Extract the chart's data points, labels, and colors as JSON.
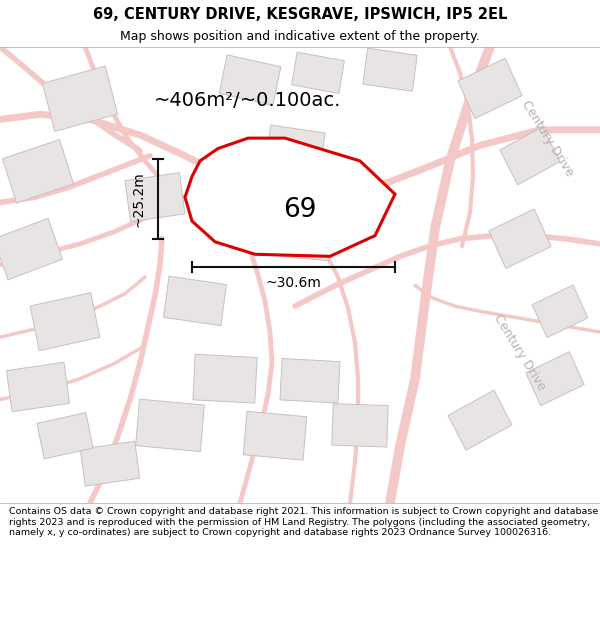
{
  "title_line1": "69, CENTURY DRIVE, KESGRAVE, IPSWICH, IP5 2EL",
  "title_line2": "Map shows position and indicative extent of the property.",
  "footer_text": "Contains OS data © Crown copyright and database right 2021. This information is subject to Crown copyright and database rights 2023 and is reproduced with the permission of HM Land Registry. The polygons (including the associated geometry, namely x, y co-ordinates) are subject to Crown copyright and database rights 2023 Ordnance Survey 100026316.",
  "area_label": "~406m²/~0.100ac.",
  "property_number": "69",
  "width_label": "~30.6m",
  "height_label": "~25.2m",
  "map_bg_color": "#fafafa",
  "building_color": "#e8e4e4",
  "building_edge_color": "#c8c0c0",
  "road_color": "#f5c8c8",
  "property_fill": "#ffffff",
  "property_edge_color": "#dd0000",
  "property_edge_width": 2.2,
  "street_label": "Century Drive",
  "dim_color": "#111111",
  "title_fontsize": 10.5,
  "subtitle_fontsize": 9,
  "footer_fontsize": 6.8,
  "number_fontsize": 19,
  "area_fontsize": 14,
  "dim_fontsize": 10,
  "street_fontsize": 9
}
